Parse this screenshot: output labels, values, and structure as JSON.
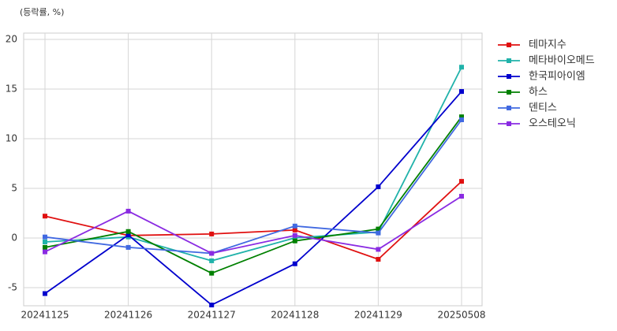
{
  "chart_data": {
    "type": "line",
    "ylabel": "(등락률, %)",
    "categories": [
      "20241125",
      "20241126",
      "20241127",
      "20241128",
      "20241129",
      "20250508"
    ],
    "series": [
      {
        "name": "테마지수",
        "color": "#e01010",
        "values": [
          2.2,
          0.25,
          0.4,
          0.8,
          -2.15,
          5.7
        ]
      },
      {
        "name": "메타바이오메드",
        "color": "#20b2aa",
        "values": [
          -0.4,
          0.1,
          -2.3,
          0.0,
          0.6,
          17.2
        ]
      },
      {
        "name": "한국피아이엠",
        "color": "#0000cd",
        "values": [
          -5.6,
          0.3,
          -6.75,
          -2.6,
          5.15,
          14.75
        ]
      },
      {
        "name": "하스",
        "color": "#008000",
        "values": [
          -0.95,
          0.65,
          -3.55,
          -0.3,
          0.9,
          12.2
        ]
      },
      {
        "name": "덴티스",
        "color": "#4169e1",
        "values": [
          0.1,
          -0.95,
          -1.55,
          1.2,
          0.5,
          11.9
        ]
      },
      {
        "name": "오스테오닉",
        "color": "#8a2be2",
        "values": [
          -1.4,
          2.7,
          -1.55,
          0.25,
          -1.15,
          4.2
        ]
      }
    ],
    "ylim": [
      -6.83,
      20.63
    ],
    "yticks": [
      -5,
      0,
      5,
      10,
      15,
      20
    ],
    "grid": true,
    "legend": "outside-right"
  }
}
